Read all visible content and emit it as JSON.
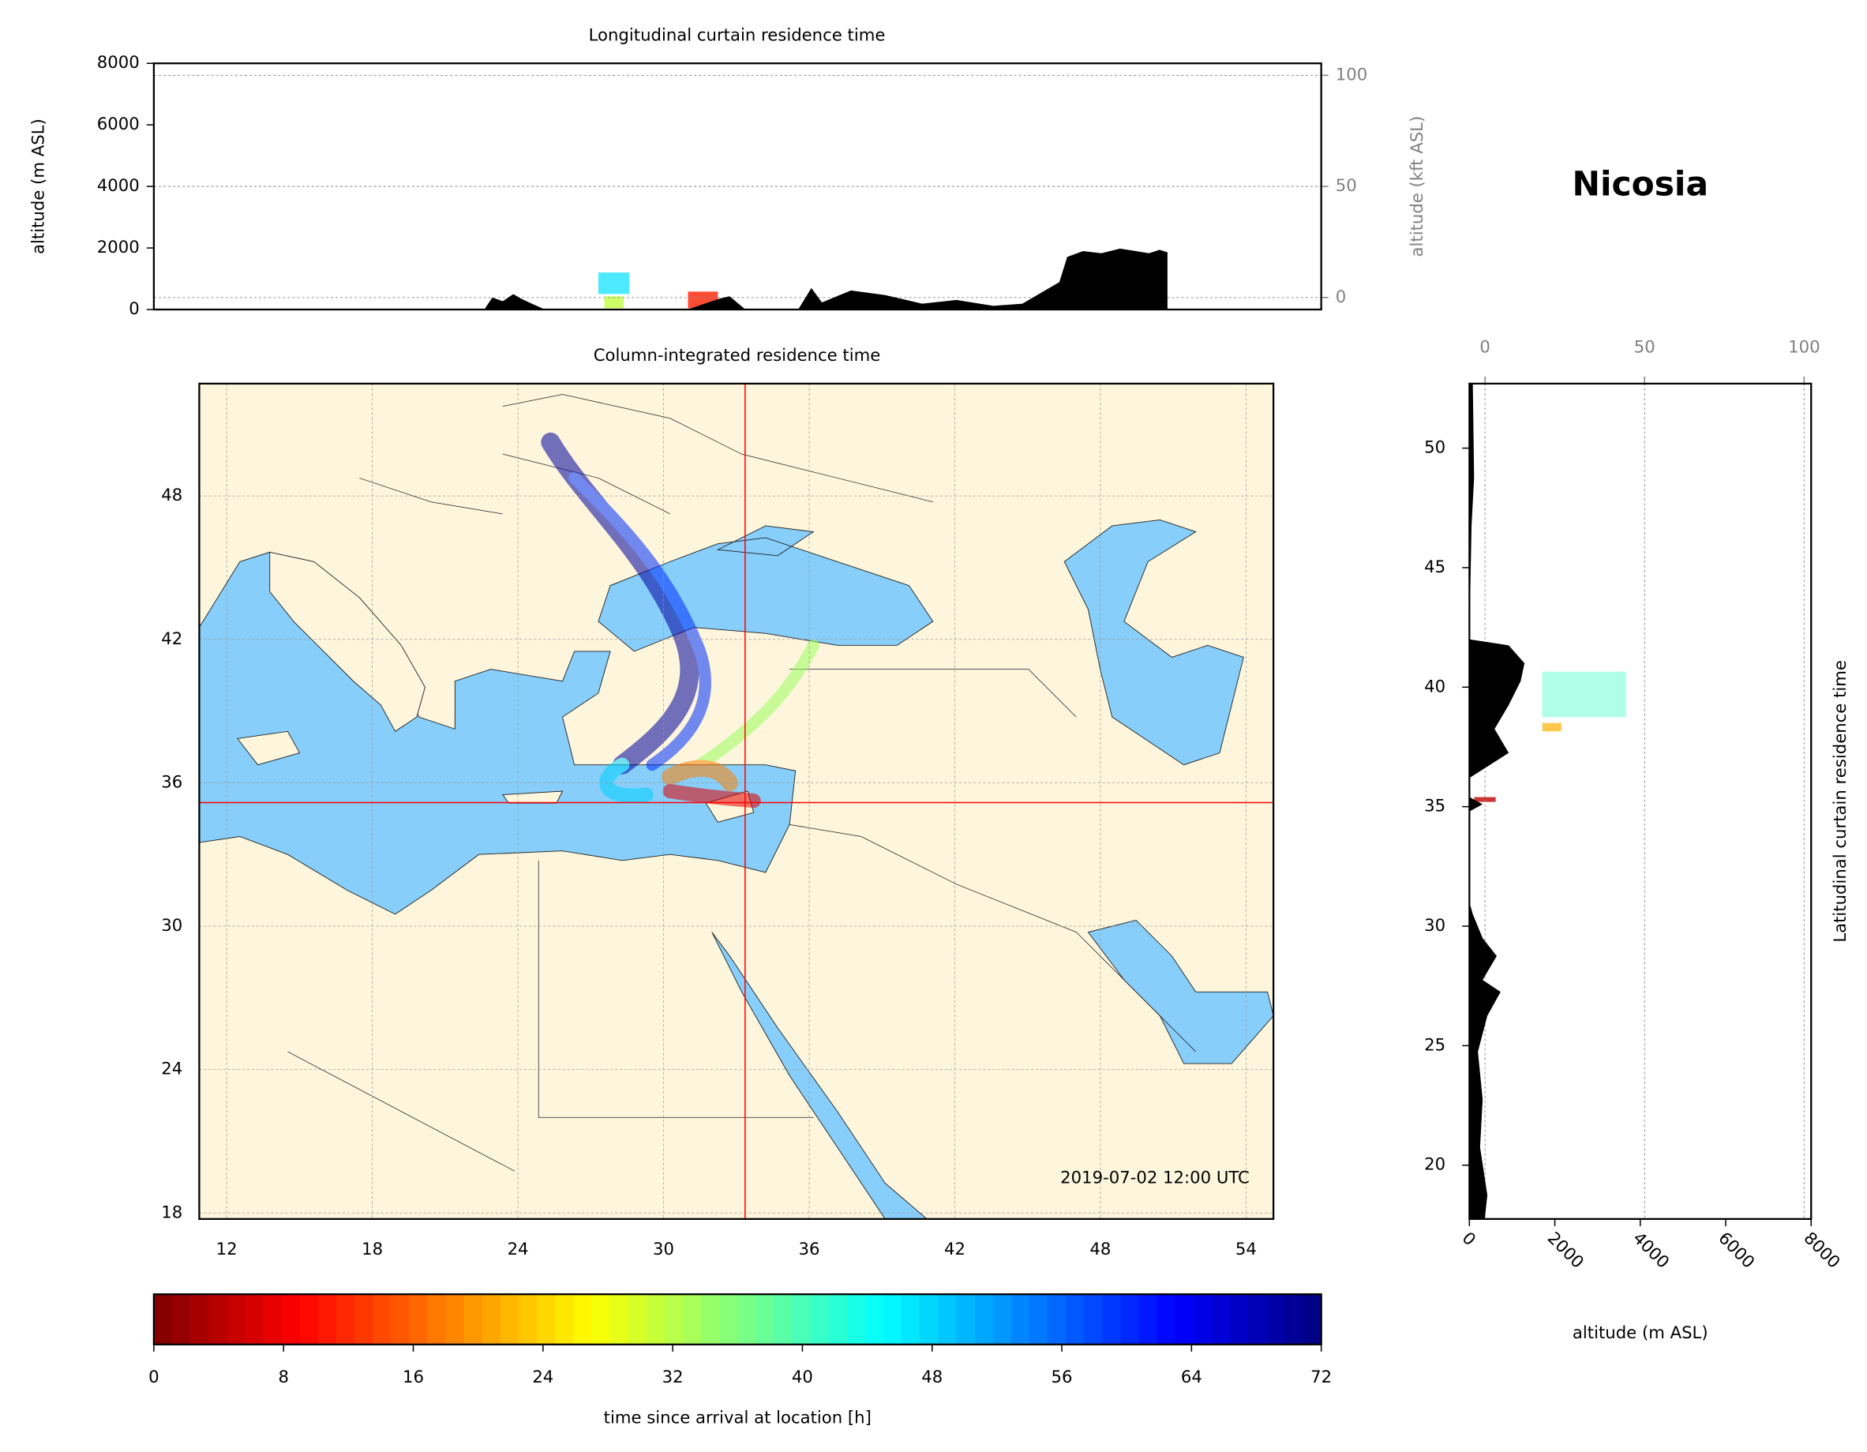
{
  "title": "Nicosia",
  "chart_data": [
    {
      "type": "area",
      "title": "Longitudinal curtain residence time",
      "ylabel": "altitude (m ASL)",
      "y2label": "altitude (kft ASL)",
      "xlim": [
        10.87,
        55.13
      ],
      "ylim": [
        0,
        8000
      ],
      "yticks": [
        0,
        2000,
        4000,
        6000,
        8000
      ],
      "y2lim": [
        -5.4,
        105.4
      ],
      "y2ticks": [
        0,
        50,
        100
      ],
      "grid": "y2",
      "color": "#000000",
      "x": [
        23.4,
        23.7,
        24.1,
        24.5,
        24.8,
        25.2,
        25.7,
        28.0,
        31.1,
        32.3,
        32.7,
        33.3,
        34.0,
        35.3,
        35.8,
        36.2,
        37.3,
        38.6,
        40.0,
        41.3,
        42.7,
        43.8,
        44.5,
        45.2,
        45.5,
        46.1,
        46.8,
        47.5,
        48.1,
        48.6,
        49.0,
        49.3
      ],
      "values": [
        0,
        390,
        270,
        500,
        350,
        190,
        0,
        null,
        0,
        350,
        430,
        0,
        null,
        0,
        700,
        230,
        620,
        470,
        190,
        310,
        120,
        190,
        540,
        890,
        1710,
        1900,
        1830,
        1980,
        1900,
        1830,
        1940,
        1860
      ]
    },
    {
      "type": "map",
      "title": "Column-integrated residence time",
      "xlim": [
        10.87,
        55.13
      ],
      "ylim": [
        17.75,
        52.7
      ],
      "xticks": [
        12,
        18,
        24,
        30,
        36,
        42,
        48,
        54
      ],
      "yticks": [
        18,
        24,
        30,
        36,
        42,
        48
      ],
      "grid": true,
      "annotation": "2019-07-02 12:00 UTC",
      "crosshair": {
        "lon": 33.36,
        "lat": 35.17,
        "color": "#ff0000"
      }
    },
    {
      "type": "area",
      "orientation": "horizontal",
      "ylabel": "Latitudinal curtain residence time",
      "xlabel": "altitude (m ASL)",
      "xlim": [
        0,
        8000
      ],
      "xticks": [
        0,
        2000,
        4000,
        6000,
        8000
      ],
      "x2lim": [
        -4.9,
        102.2
      ],
      "x2ticks": [
        0,
        50,
        100
      ],
      "grid": "x2",
      "ylim": [
        17.75,
        52.7
      ],
      "yticks": [
        20,
        25,
        30,
        35,
        40,
        45,
        50
      ],
      "color": "#000000",
      "y": [
        17.75,
        18.75,
        20.75,
        22.75,
        24.75,
        26.25,
        27.25,
        27.75,
        28.75,
        29.5,
        30.5,
        31.0,
        34.8,
        35.1,
        35.4,
        36.2,
        37.25,
        38.25,
        39.25,
        40.25,
        41.0,
        41.75,
        42.0,
        46.75,
        48.75,
        52.7
      ],
      "values": [
        360,
        420,
        250,
        310,
        200,
        420,
        730,
        310,
        640,
        310,
        80,
        0,
        0,
        310,
        0,
        0,
        920,
        590,
        920,
        1200,
        1290,
        920,
        0,
        50,
        110,
        80
      ]
    },
    {
      "type": "colorbar",
      "xlabel": "time since arrival at location [h]",
      "colormap": "jet_r",
      "clim": [
        0,
        72
      ],
      "ticks": [
        0,
        8,
        16,
        24,
        32,
        40,
        48,
        56,
        64,
        72
      ]
    }
  ]
}
